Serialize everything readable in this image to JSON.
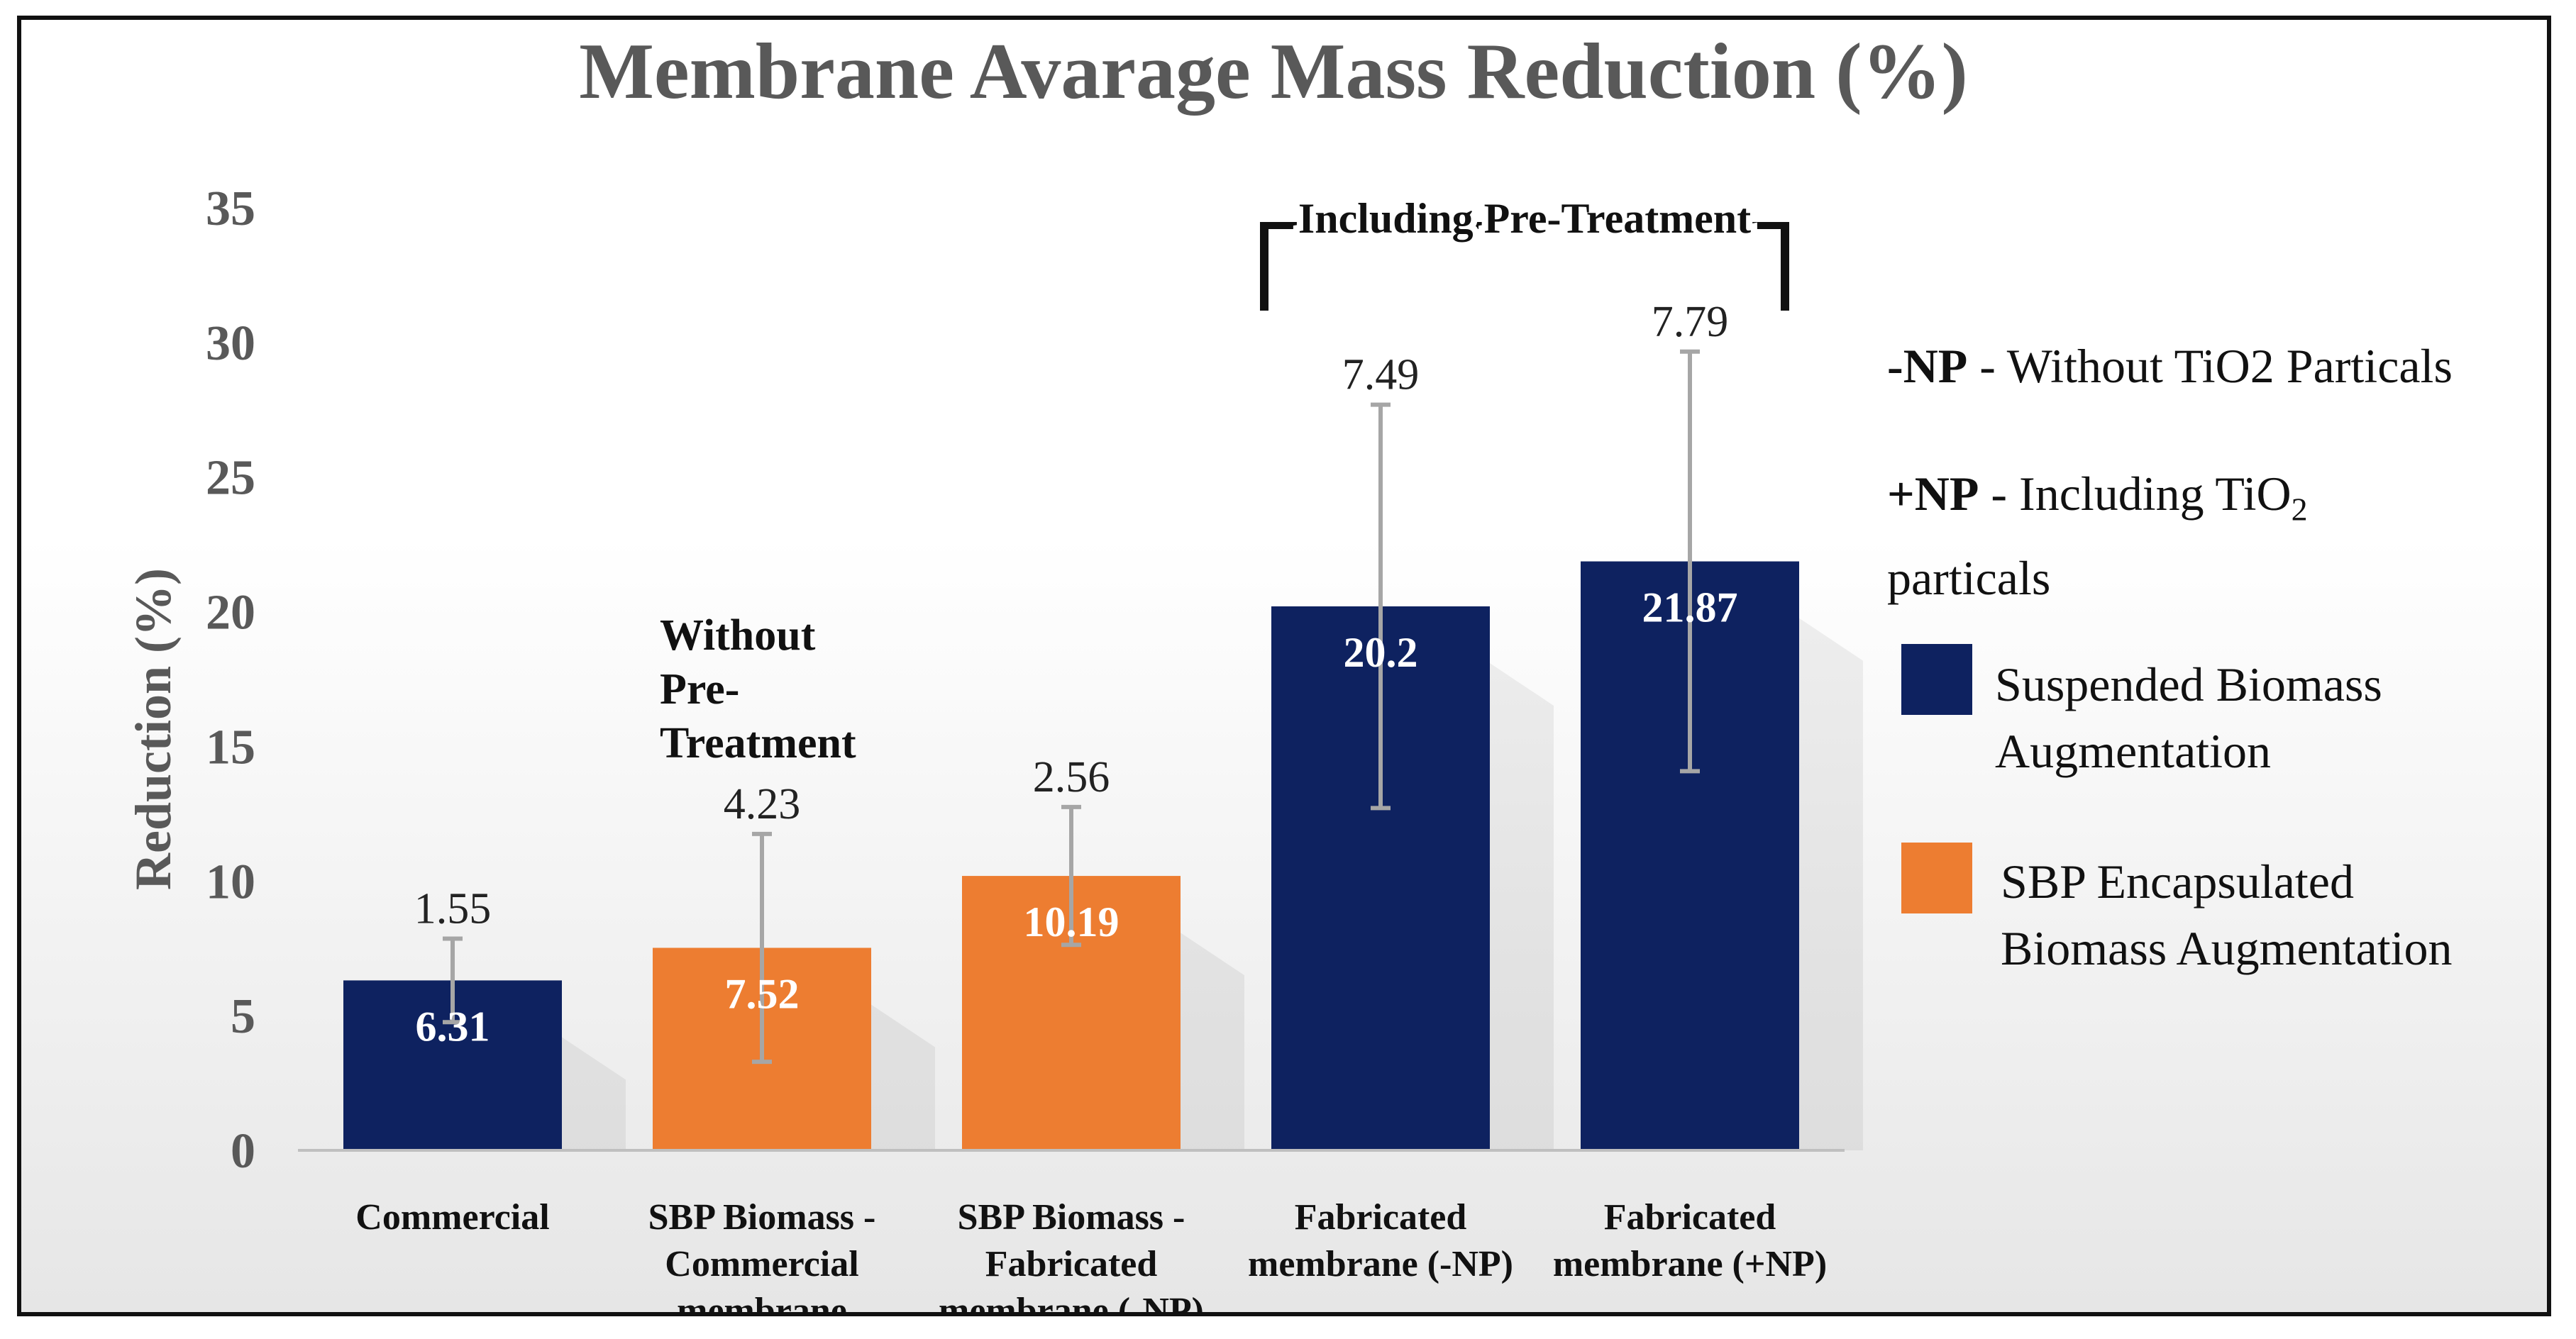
{
  "chart_data": {
    "type": "bar",
    "title": "Membrane Avarage Mass Reduction (%)",
    "ylabel": "Reduction (%)",
    "xlabel": "",
    "ylim": [
      0,
      35
    ],
    "yticks": [
      "0",
      "5",
      "10",
      "15",
      "20",
      "25",
      "30",
      "35"
    ],
    "categories": [
      [
        "Commercial"
      ],
      [
        "SBP Biomass -",
        "Commercial",
        "membrane"
      ],
      [
        "SBP Biomass -",
        "Fabricated",
        "membrane (-NP)"
      ],
      [
        "Fabricated",
        "membrane (-NP)"
      ],
      [
        "Fabricated",
        "membrane (+NP)"
      ]
    ],
    "values": [
      6.31,
      7.52,
      10.19,
      20.2,
      21.87
    ],
    "value_labels": [
      "6.31",
      "7.52",
      "10.19",
      "20.2",
      "21.87"
    ],
    "errors": [
      1.55,
      4.23,
      2.56,
      7.49,
      7.79
    ],
    "error_labels": [
      "1.55",
      "4.23",
      "2.56",
      "7.49",
      "7.79"
    ],
    "series_index": [
      0,
      1,
      1,
      0,
      0
    ],
    "series": [
      {
        "name": "Suspended Biomass Augmentation",
        "color": "#0e2260"
      },
      {
        "name": "SBP Encapsulated Biomass Augmentation",
        "color": "#ed7d31"
      }
    ],
    "annotations": {
      "without_pretreatment": [
        "Without",
        "Pre-",
        "Treatment"
      ],
      "including_pretreatment": "Including  Pre-Treatment"
    }
  },
  "legend": {
    "np_minus_key": "-NP",
    "np_minus_text": " - Without TiO2  Particals",
    "np_plus_key": "+NP",
    "np_plus_text": " -  Including TiO",
    "np_plus_sub": "2",
    "np_plus_text2": "particals",
    "series1_line1": "Suspended Biomass",
    "series1_line2": "Augmentation",
    "series2_line1": "SBP Encapsulated",
    "series2_line2": "Biomass Augmentation"
  },
  "colors": {
    "navy": "#0e2260",
    "orange": "#ed7d31",
    "error_bar": "#a6a6a6",
    "axis_text": "#595959"
  }
}
